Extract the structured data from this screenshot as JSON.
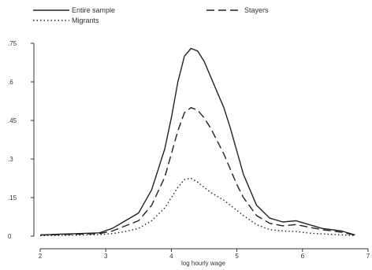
{
  "chart_data": {
    "type": "line",
    "xlabel": "log hourly wage",
    "ylabel": "",
    "xlim": [
      2,
      7
    ],
    "ylim": [
      0,
      0.75
    ],
    "x_ticks": [
      2,
      3,
      4,
      5,
      6,
      7
    ],
    "x_tick_labels": [
      "2",
      "3",
      "4",
      "5",
      "6",
      "7"
    ],
    "y_ticks": [
      0,
      0.15,
      0.3,
      0.45,
      0.6,
      0.75
    ],
    "y_tick_labels": [
      "0",
      ".15",
      ".3",
      ".45",
      ".6",
      ".75"
    ],
    "grid": false,
    "legend_position": "top",
    "series": [
      {
        "name": "Entire sample",
        "style": "solid",
        "x": [
          2.0,
          2.3,
          2.6,
          2.9,
          3.1,
          3.3,
          3.5,
          3.7,
          3.9,
          4.0,
          4.1,
          4.2,
          4.3,
          4.4,
          4.5,
          4.6,
          4.7,
          4.8,
          4.9,
          5.0,
          5.1,
          5.3,
          5.5,
          5.7,
          5.9,
          6.1,
          6.3,
          6.6,
          6.8
        ],
        "y": [
          0.005,
          0.008,
          0.01,
          0.013,
          0.03,
          0.06,
          0.09,
          0.18,
          0.34,
          0.46,
          0.6,
          0.7,
          0.73,
          0.72,
          0.68,
          0.62,
          0.56,
          0.5,
          0.42,
          0.33,
          0.24,
          0.12,
          0.07,
          0.055,
          0.06,
          0.045,
          0.03,
          0.02,
          0.005
        ]
      },
      {
        "name": "Stayers",
        "style": "dashed",
        "x": [
          2.0,
          2.3,
          2.6,
          2.9,
          3.1,
          3.3,
          3.5,
          3.7,
          3.9,
          4.0,
          4.1,
          4.2,
          4.3,
          4.4,
          4.5,
          4.6,
          4.7,
          4.8,
          4.9,
          5.0,
          5.1,
          5.3,
          5.5,
          5.7,
          5.9,
          6.1,
          6.3,
          6.6,
          6.8
        ],
        "y": [
          0.004,
          0.006,
          0.008,
          0.01,
          0.02,
          0.04,
          0.06,
          0.12,
          0.23,
          0.32,
          0.41,
          0.48,
          0.5,
          0.49,
          0.46,
          0.42,
          0.37,
          0.32,
          0.26,
          0.2,
          0.15,
          0.08,
          0.05,
          0.04,
          0.045,
          0.035,
          0.025,
          0.015,
          0.004
        ]
      },
      {
        "name": "Migrants",
        "style": "dotted",
        "x": [
          2.0,
          2.3,
          2.6,
          2.9,
          3.1,
          3.3,
          3.5,
          3.7,
          3.9,
          4.0,
          4.1,
          4.2,
          4.3,
          4.4,
          4.5,
          4.6,
          4.7,
          4.8,
          4.9,
          5.0,
          5.1,
          5.3,
          5.5,
          5.7,
          5.9,
          6.1,
          6.3,
          6.6,
          6.8
        ],
        "y": [
          0.002,
          0.003,
          0.004,
          0.006,
          0.01,
          0.018,
          0.03,
          0.06,
          0.11,
          0.15,
          0.19,
          0.22,
          0.225,
          0.21,
          0.19,
          0.17,
          0.155,
          0.14,
          0.12,
          0.1,
          0.08,
          0.045,
          0.025,
          0.02,
          0.018,
          0.012,
          0.009,
          0.005,
          0.002
        ]
      }
    ]
  }
}
